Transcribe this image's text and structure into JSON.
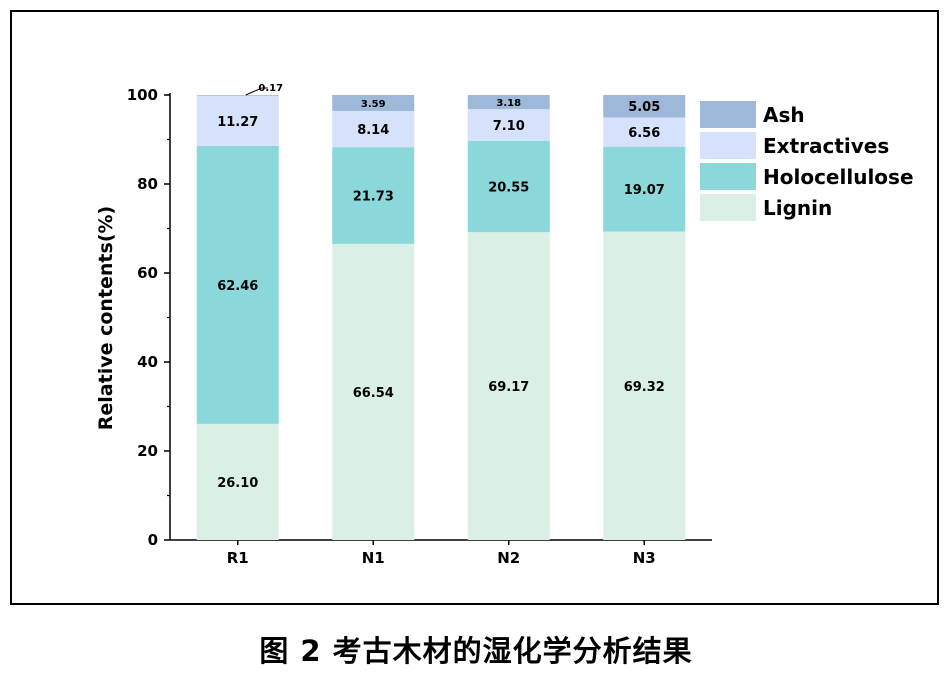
{
  "caption": "图 2  考古木材的湿化学分析结果",
  "chart_data": {
    "type": "bar",
    "stacked": true,
    "categories": [
      "R1",
      "N1",
      "N2",
      "N3"
    ],
    "ylabel": "Relative contents(%)",
    "xlabel": "",
    "ylim": [
      0,
      100
    ],
    "yticks": [
      0,
      20,
      40,
      60,
      80,
      100
    ],
    "legend_position": "right",
    "series": [
      {
        "name": "Lignin",
        "color": "#daf0e5",
        "values": [
          26.1,
          66.54,
          69.17,
          69.32
        ],
        "labels": [
          "26.10",
          "66.54",
          "69.17",
          "69.32"
        ]
      },
      {
        "name": "Holocellulose",
        "color": "#8ad8da",
        "values": [
          62.46,
          21.73,
          20.55,
          19.07
        ],
        "labels": [
          "62.46",
          "21.73",
          "20.55",
          "19.07"
        ]
      },
      {
        "name": "Extractives",
        "color": "#d6e2fb",
        "values": [
          11.27,
          8.14,
          7.1,
          6.56
        ],
        "labels": [
          "11.27",
          "8.14",
          "7.10",
          "6.56"
        ]
      },
      {
        "name": "Ash",
        "color": "#9db8d9",
        "values": [
          0.17,
          3.59,
          3.18,
          5.05
        ],
        "labels": [
          "0.17",
          "3.59",
          "3.18",
          "5.05"
        ]
      }
    ],
    "legend_order": [
      "Ash",
      "Extractives",
      "Holocellulose",
      "Lignin"
    ]
  }
}
